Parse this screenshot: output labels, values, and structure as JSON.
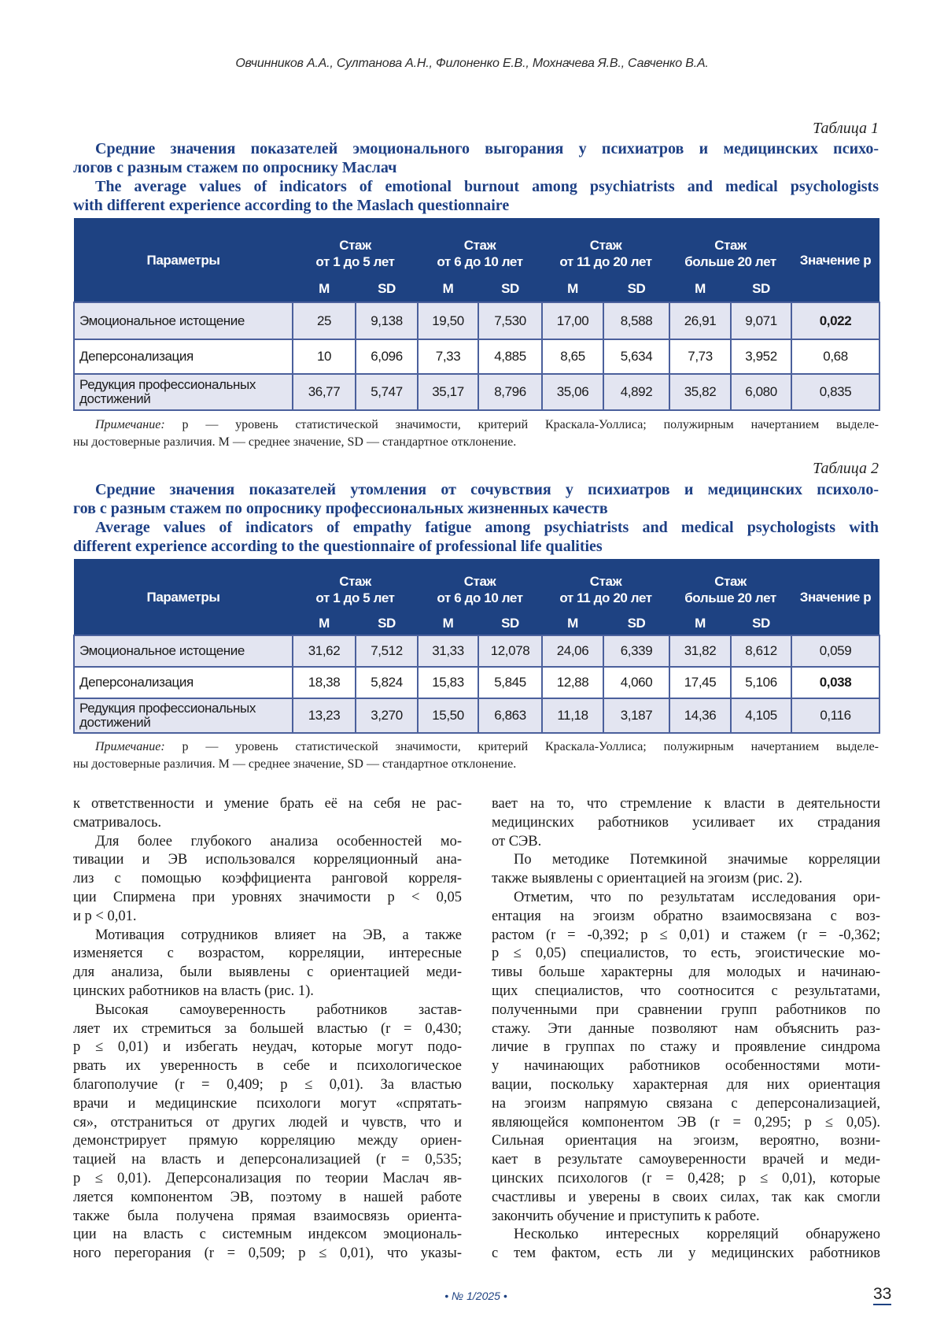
{
  "header": {
    "authors": "Овчинников А.А., Султанова А.Н., Филоненко Е.В., Мохначева Я.В., Савченко В.А."
  },
  "colors": {
    "accent": "#1d3f84",
    "table_header": "#1e4282",
    "row_shade": "#e3e5f1"
  },
  "tables": [
    {
      "label": "Таблица 1",
      "title_lines": [
        "Средние значения показателей эмоционального выгорания у психиатров и медицинских психо-",
        "логов с разным стажем по опроснику Маслач",
        "The average values of indicators of emotional burnout among psychiatrists and medical psychologists",
        "with different experience according to the Maslach questionnaire"
      ],
      "columns": {
        "param": "Параметры",
        "groups": [
          {
            "line1": "Стаж",
            "line2": "от 1 до 5 лет"
          },
          {
            "line1": "Стаж",
            "line2": "от 6 до 10 лет"
          },
          {
            "line1": "Стаж",
            "line2": "от 11 до 20 лет"
          },
          {
            "line1": "Стаж",
            "line2": "больше 20 лет"
          }
        ],
        "sub": [
          "M",
          "SD",
          "M",
          "SD",
          "M",
          "SD",
          "M",
          "SD"
        ],
        "p": "Значение p"
      },
      "rows": [
        {
          "param": "Эмоциональное истощение",
          "values": [
            "25",
            "9,138",
            "19,50",
            "7,530",
            "17,00",
            "8,588",
            "26,91",
            "9,071"
          ],
          "p": "0,022",
          "significant": true
        },
        {
          "param": "Деперсонализация",
          "values": [
            "10",
            "6,096",
            "7,33",
            "4,885",
            "8,65",
            "5,634",
            "7,73",
            "3,952"
          ],
          "p": "0,68",
          "significant": false
        },
        {
          "param": "Редукция профессиональных достижений",
          "values": [
            "36,77",
            "5,747",
            "35,17",
            "8,796",
            "35,06",
            "4,892",
            "35,82",
            "6,080"
          ],
          "p": "0,835",
          "significant": false
        }
      ],
      "note": {
        "label": "Примечание:",
        "line1": " p — уровень статистической значимости, критерий Краскала-Уоллиса; полужирным начертанием выделе-",
        "line2": "ны достоверные различия. M — среднее значение, SD — стандартное отклонение."
      }
    },
    {
      "label": "Таблица 2",
      "title_lines": [
        "Средние значения показателей утомления от сочувствия у психиатров и медицинских психоло-",
        "гов с разным стажем по опроснику профессиональных жизненных качеств",
        "Average values of indicators of empathy fatigue among psychiatrists and medical psychologists with",
        "different experience according to the questionnaire of professional life qualities"
      ],
      "columns": {
        "param": "Параметры",
        "groups": [
          {
            "line1": "Стаж",
            "line2": "от 1 до 5 лет"
          },
          {
            "line1": "Стаж",
            "line2": "от 6 до 10 лет"
          },
          {
            "line1": "Стаж",
            "line2": "от 11 до 20 лет"
          },
          {
            "line1": "Стаж",
            "line2": "больше 20 лет"
          }
        ],
        "sub": [
          "M",
          "SD",
          "M",
          "SD",
          "M",
          "SD",
          "M",
          "SD"
        ],
        "p": "Значение p"
      },
      "rows": [
        {
          "param": "Эмоциональное истощение",
          "values": [
            "31,62",
            "7,512",
            "31,33",
            "12,078",
            "24,06",
            "6,339",
            "31,82",
            "8,612"
          ],
          "p": "0,059",
          "significant": false
        },
        {
          "param": "Деперсонализация",
          "values": [
            "18,38",
            "5,824",
            "15,83",
            "5,845",
            "12,88",
            "4,060",
            "17,45",
            "5,106"
          ],
          "p": "0,038",
          "significant": true
        },
        {
          "param": "Редукция профессиональных достижений",
          "values": [
            "13,23",
            "3,270",
            "15,50",
            "6,863",
            "11,18",
            "3,187",
            "14,36",
            "4,105"
          ],
          "p": "0,116",
          "significant": false
        }
      ],
      "note": {
        "label": "Примечание:",
        "line1": " p — уровень статистической значимости, критерий Краскала-Уоллиса; полужирным начертанием выделе-",
        "line2": "ны достоверные различия. M — среднее значение, SD — стандартное отклонение."
      }
    }
  ],
  "body": {
    "left": [
      {
        "lines": [
          "к ответственности и умение брать её на себя не рас-",
          "сматривалось."
        ]
      },
      {
        "lines": [
          "Для более глубокого анализа особенностей мо-",
          "тивации и ЭВ использовался корреляционный ана-",
          "лиз с помощью коэффициента ранговой корреля-",
          "ции Спирмена при уровнях значимости p < 0,05",
          "и p < 0,01."
        ]
      },
      {
        "lines": [
          "Мотивация сотрудников влияет на ЭВ, а также",
          "изменяется с возрастом, корреляции, интересные",
          "для анализа, были выявлены с ориентацией меди-",
          "цинских работников на власть (рис. 1)."
        ]
      },
      {
        "lines": [
          "Высокая самоуверенность работников застав-",
          "ляет их стремиться за большей властью (r = 0,430;",
          "p ≤ 0,01) и избегать неудач, которые могут подо-",
          "рвать их уверенность в себе и психологическое",
          "благополучие (r = 0,409; p ≤ 0,01). За властью",
          "врачи и медицинские психологи могут «спрятать-",
          "ся», отстраниться от других людей и чувств, что и",
          "демонстрирует прямую корреляцию между ориен-",
          "тацией на власть и деперсонализацией (r = 0,535;",
          "p ≤ 0,01). Деперсонализация по теории Маслач яв-",
          "ляется компонентом ЭВ, поэтому в нашей работе",
          "также была получена прямая взаимосвязь ориента-",
          "ции на власть с системным индексом эмоциональ-",
          "ного перегорания (r = 0,509; p ≤ 0,01), что указы-"
        ]
      }
    ],
    "right": [
      {
        "lines": [
          "вает на то, что стремление к власти в деятельности",
          "медицинских работников усиливает их страдания",
          "от СЭВ."
        ]
      },
      {
        "lines": [
          "По методике Потемкиной значимые корреляции",
          "также выявлены с ориентацией на эгоизм (рис. 2)."
        ]
      },
      {
        "lines": [
          "Отметим, что по результатам исследования ори-",
          "ентация на эгоизм обратно взаимосвязана с воз-",
          "растом (r = -0,392; p ≤ 0,01) и стажем (r = -0,362;",
          "p ≤ 0,05) специалистов, то есть, эгоистические мо-",
          "тивы больше характерны для молодых и начинаю-",
          "щих специалистов, что соотносится с результатами,",
          "полученными при сравнении групп работников по",
          "стажу. Эти данные позволяют нам объяснить раз-",
          "личие в группах по стажу и проявление синдрома",
          "у начинающих работников особенностями моти-",
          "вации, поскольку характерная для них ориентация",
          "на эгоизм напрямую связана с деперсонализацией,",
          "являющейся компонентом ЭВ (r = 0,295; p ≤ 0,05).",
          "Сильная ориентация на эгоизм, вероятно, возни-",
          "кает в результате самоуверенности врачей и меди-",
          "цинских психологов (r = 0,428; p ≤ 0,01), которые",
          "счастливы и уверены в своих силах, так как смогли",
          "закончить обучение и приступить к работе."
        ]
      },
      {
        "lines": [
          "Несколько интересных корреляций обнаружено",
          "с тем фактом, есть ли у медицинских работников"
        ]
      }
    ]
  },
  "footer": {
    "issue": "• № 1/2025 •",
    "page": "33"
  }
}
